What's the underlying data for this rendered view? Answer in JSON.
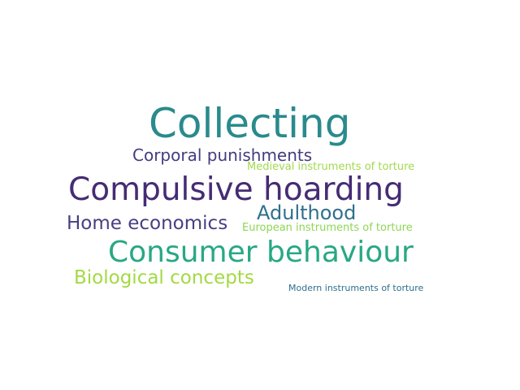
{
  "word_cloud": {
    "words": [
      {
        "text": "Collecting",
        "color": "#2a8a8c"
      },
      {
        "text": "Corporal punishments",
        "color": "#433c80"
      },
      {
        "text": "Medieval instruments of torture",
        "color": "#a3d94e"
      },
      {
        "text": "Compulsive hoarding",
        "color": "#452c74"
      },
      {
        "text": "Adulthood",
        "color": "#306f8e"
      },
      {
        "text": "Home economics",
        "color": "#463f82"
      },
      {
        "text": "European instruments of torture",
        "color": "#8ed554"
      },
      {
        "text": "Consumer behaviour",
        "color": "#27a884"
      },
      {
        "text": "Biological concepts",
        "color": "#a2da43"
      },
      {
        "text": "Modern instruments of torture",
        "color": "#2c6f8e"
      }
    ]
  }
}
